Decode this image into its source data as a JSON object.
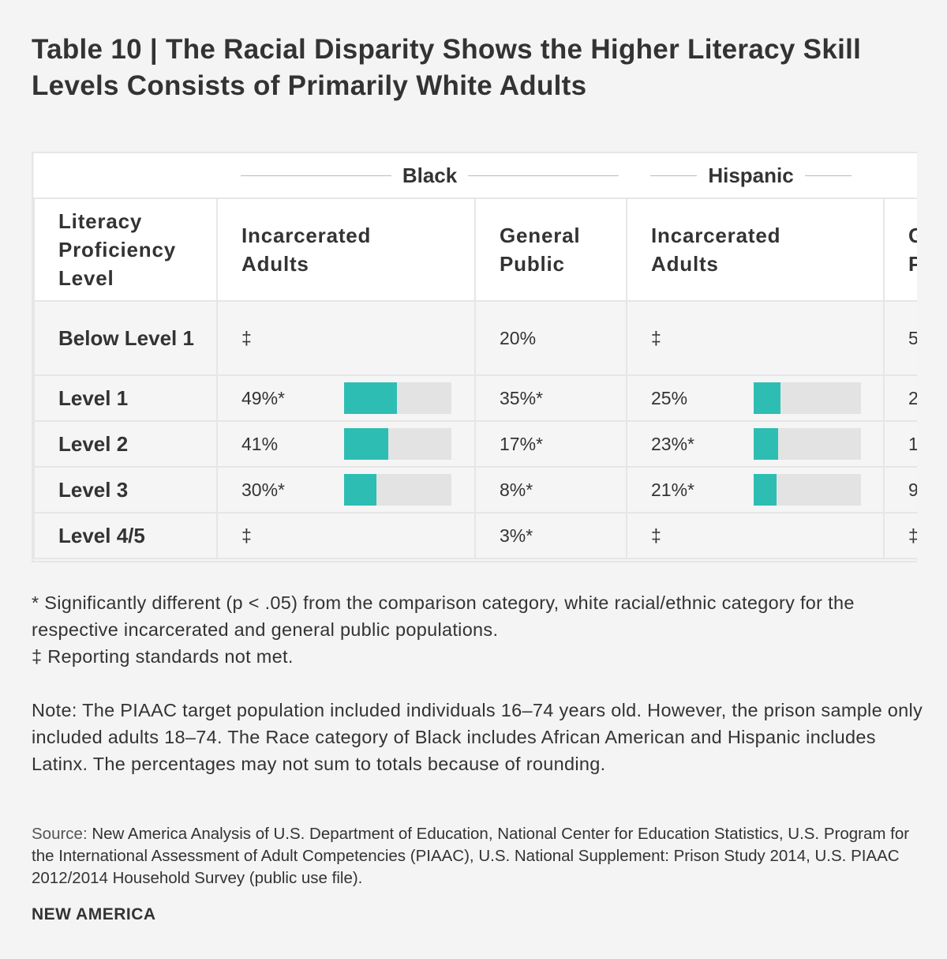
{
  "title": "Table 10 | The Racial Disparity Shows the Higher Literacy Skill Levels Consists of Primarily White Adults",
  "chart_data": {
    "type": "table",
    "groups": [
      "Black",
      "Hispanic"
    ],
    "headers": [
      "Literacy Proficiency Level",
      "Incarcerated Adults",
      "General Public",
      "Incarcerated Adults",
      "General Public"
    ],
    "bar_scale_max": 100,
    "bar_color": "#2ebdb3",
    "rows": [
      {
        "level": "Below Level 1",
        "black_inc": "‡",
        "black_inc_value": null,
        "black_gen": "20%",
        "hisp_inc": "‡",
        "hisp_inc_value": null,
        "hisp_gen": "5"
      },
      {
        "level": "Level 1",
        "black_inc": "49%*",
        "black_inc_value": 49,
        "black_gen": "35%*",
        "hisp_inc": "25%",
        "hisp_inc_value": 25,
        "hisp_gen": "2"
      },
      {
        "level": "Level 2",
        "black_inc": "41%",
        "black_inc_value": 41,
        "black_gen": "17%*",
        "hisp_inc": "23%*",
        "hisp_inc_value": 23,
        "hisp_gen": "1"
      },
      {
        "level": "Level 3",
        "black_inc": "30%*",
        "black_inc_value": 30,
        "black_gen": "8%*",
        "hisp_inc": "21%*",
        "hisp_inc_value": 21,
        "hisp_gen": "9"
      },
      {
        "level": "Level 4/5",
        "black_inc": "‡",
        "black_inc_value": null,
        "black_gen": "3%*",
        "hisp_inc": "‡",
        "hisp_inc_value": null,
        "hisp_gen": "‡"
      }
    ]
  },
  "footnotes": {
    "significance": "* Significantly different (p < .05) from the comparison category, white racial/ethnic category for the respective incarcerated and general public populations.",
    "reporting": "‡ Reporting standards not met.",
    "note": "Note: The PIAAC target population included individuals 16–74 years old. However, the prison sample only included adults 18–74. The Race category of Black includes African American and Hispanic includes Latinx. The percentages may not sum to totals because of rounding.",
    "source_label": "Source:",
    "source": " New America Analysis of U.S. Department of Education, National Center for Education Statistics, U.S. Program for the International Assessment of Adult Competencies (PIAAC), U.S. National Supplement: Prison Study 2014, U.S. PIAAC 2012/2014 Household Survey (public use file)."
  },
  "brand": "NEW AMERICA"
}
